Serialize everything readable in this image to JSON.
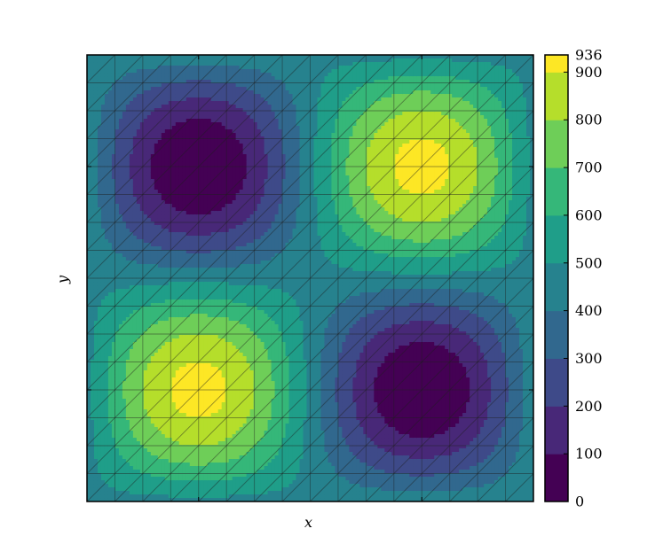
{
  "chart_data": {
    "type": "heatmap",
    "subtype": "filled-contour",
    "title": "",
    "xlabel": "x",
    "ylabel": "y",
    "x_tick_labels": "none",
    "y_tick_labels": "none",
    "colormap": "viridis",
    "vmin": 0,
    "vmax": 936,
    "contour_levels": [
      0,
      100,
      200,
      300,
      400,
      500,
      600,
      700,
      800,
      900,
      936
    ],
    "colorbar_tick_labels": [
      "0",
      "100",
      "200",
      "300",
      "400",
      "500",
      "600",
      "700",
      "800",
      "900",
      "936"
    ],
    "level_colors": [
      "#440154",
      "#482878",
      "#3e4a89",
      "#31688e",
      "#26828e",
      "#1f9e89",
      "#35b779",
      "#6ece58",
      "#b5de2b",
      "#fde725"
    ],
    "field": {
      "description": "Four-lobe product-of-sines field: highs at upper-right and lower-left, lows at upper-left and lower-right",
      "extrema": [
        {
          "x": 0.25,
          "y": 0.75,
          "value": 0
        },
        {
          "x": 0.75,
          "y": 0.75,
          "value": 936
        },
        {
          "x": 0.25,
          "y": 0.25,
          "value": 936
        },
        {
          "x": 0.75,
          "y": 0.25,
          "value": 0
        }
      ]
    },
    "xlim": [
      0,
      1
    ],
    "ylim": [
      0,
      1
    ],
    "overlay": "triangulation mesh",
    "colorbar_position": "right",
    "grid": false
  }
}
